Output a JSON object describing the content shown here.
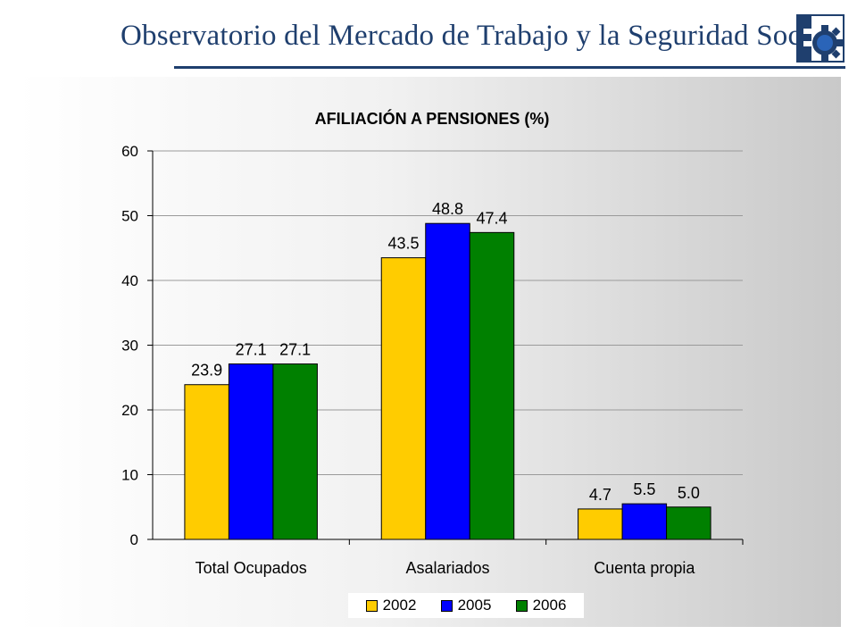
{
  "header": {
    "title": "Observatorio del Mercado de Trabajo y la Seguridad Social",
    "logo_icon": "gear-logo-icon",
    "brand_color": "#1f3f6e"
  },
  "chart_data": {
    "type": "bar",
    "title": "AFILIACIÓN A PENSIONES (%)",
    "categories": [
      "Total Ocupados",
      "Asalariados",
      "Cuenta propia"
    ],
    "series": [
      {
        "name": "2002",
        "color": "#ffcc00",
        "values": [
          23.9,
          43.5,
          4.7
        ],
        "labels": [
          "23.9",
          "43.5",
          "4.7"
        ]
      },
      {
        "name": "2005",
        "color": "#0000ff",
        "values": [
          27.1,
          48.8,
          5.5
        ],
        "labels": [
          "27.1",
          "48.8",
          "5.5"
        ]
      },
      {
        "name": "2006",
        "color": "#008000",
        "values": [
          27.1,
          47.4,
          5.0
        ],
        "labels": [
          "27.1",
          "47.4",
          "5.0"
        ]
      }
    ],
    "xlabel": "",
    "ylabel": "",
    "ylim": [
      0,
      60
    ],
    "yticks": [
      "0",
      "10",
      "20",
      "30",
      "40",
      "50",
      "60"
    ],
    "grid": true,
    "legend_position": "bottom-center"
  }
}
